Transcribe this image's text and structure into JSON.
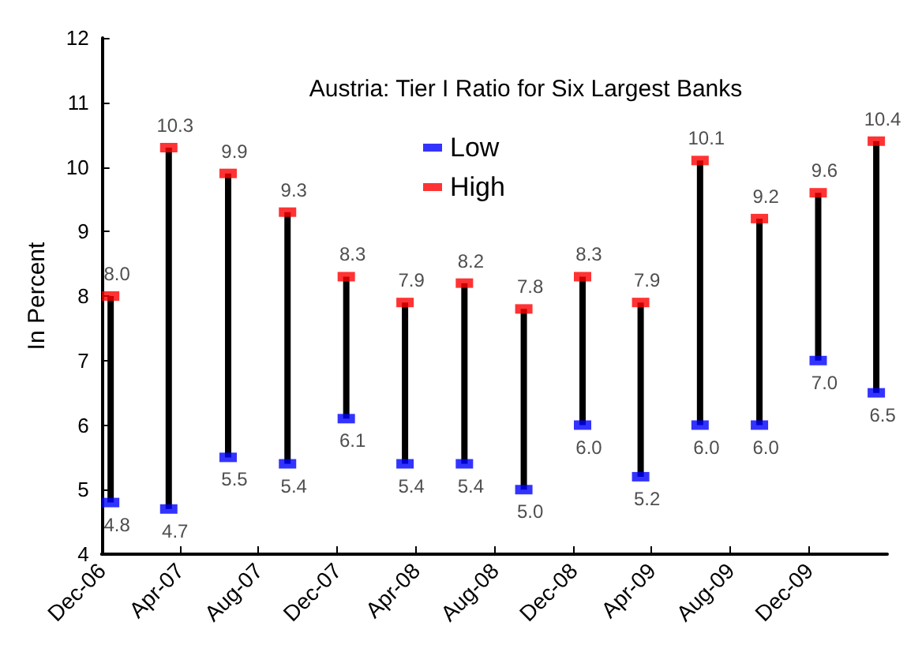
{
  "chart_data": {
    "type": "scatter",
    "title": "Austria: Tier I Ratio for Six Largest Banks",
    "ylabel": "In Percent",
    "x": [
      "2006-12-15",
      "2007-03-15",
      "2007-06-15",
      "2007-09-15",
      "2007-12-15",
      "2008-03-15",
      "2008-06-15",
      "2008-09-15",
      "2008-12-15",
      "2009-03-15",
      "2009-06-15",
      "2009-09-15",
      "2009-12-15",
      "2010-03-15"
    ],
    "series": [
      {
        "name": "Low",
        "color": "#0000ff",
        "values": [
          4.8,
          4.7,
          5.5,
          5.4,
          6.1,
          5.4,
          5.4,
          5.0,
          6.0,
          5.2,
          6.0,
          6.0,
          7.0,
          6.5
        ],
        "value_labels": [
          "4.8",
          "4.7",
          "5.5",
          "5.4",
          "6.1",
          "5.4",
          "5.4",
          "5.0",
          "6.0",
          "5.2",
          "6.0",
          "6.0",
          "7.0",
          "6.5"
        ]
      },
      {
        "name": "High",
        "color": "#ff0000",
        "values": [
          8.0,
          10.3,
          9.9,
          9.3,
          8.3,
          7.9,
          8.2,
          7.8,
          8.3,
          7.9,
          10.1,
          9.2,
          9.6,
          10.4
        ],
        "value_labels": [
          "8.0",
          "10.3",
          "9.9",
          "9.3",
          "8.3",
          "7.9",
          "8.2",
          "7.8",
          "8.3",
          "7.9",
          "10.1",
          "9.2",
          "9.6",
          "10.4"
        ]
      }
    ],
    "xlim": [
      "2006-12",
      "2010-04"
    ],
    "xticks": [
      {
        "value": "2006-12",
        "label": "Dec-06"
      },
      {
        "value": "2007-04",
        "label": "Apr-07"
      },
      {
        "value": "2007-08",
        "label": "Aug-07"
      },
      {
        "value": "2007-12",
        "label": "Dec-07"
      },
      {
        "value": "2008-04",
        "label": "Apr-08"
      },
      {
        "value": "2008-08",
        "label": "Aug-08"
      },
      {
        "value": "2008-12",
        "label": "Dec-08"
      },
      {
        "value": "2009-04",
        "label": "Apr-09"
      },
      {
        "value": "2009-08",
        "label": "Aug-09"
      },
      {
        "value": "2009-12",
        "label": "Dec-09"
      }
    ],
    "ylim": [
      4,
      12
    ],
    "yticks": [
      4,
      5,
      6,
      7,
      8,
      9,
      10,
      11,
      12
    ],
    "grid": false,
    "legend": "top",
    "marker": "square"
  }
}
